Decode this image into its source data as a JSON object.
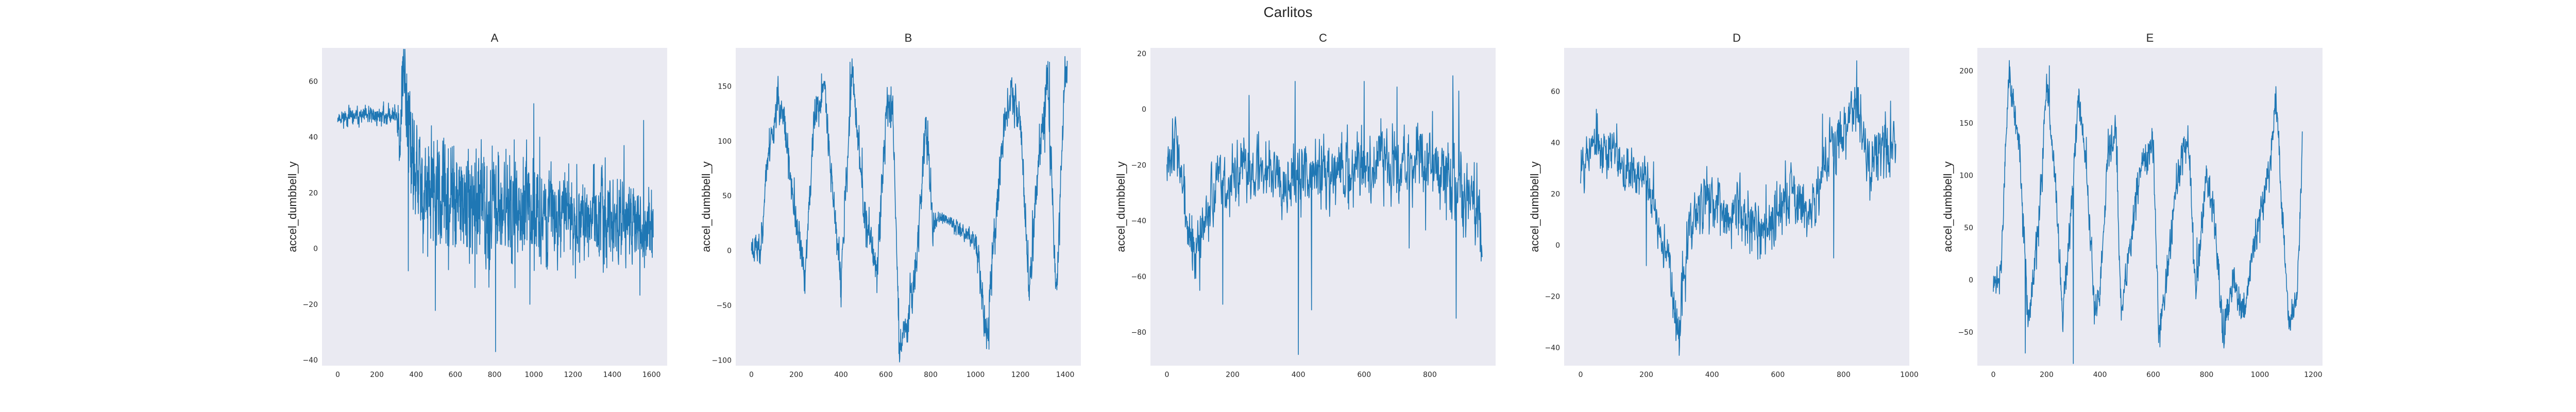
{
  "figure": {
    "title": "Carlitos",
    "background": "#ffffff",
    "axes_facecolor": "#eaeaf2",
    "line_color": "#1f77b4",
    "grid": false
  },
  "chart_data": [
    {
      "type": "line",
      "title": "A",
      "ylabel": "accel_dumbbell_y",
      "xlim": [
        -80,
        1680
      ],
      "ylim": [
        -42,
        72
      ],
      "xticks": [
        0,
        200,
        400,
        600,
        800,
        1000,
        1200,
        1400,
        1600
      ],
      "yticks": [
        -40,
        -20,
        0,
        20,
        40,
        60
      ],
      "n": 1610,
      "series": [
        {
          "anchors": [
            [
              0,
              47
            ],
            [
              300,
              48
            ],
            [
              310,
              48
            ],
            [
              320,
              30
            ],
            [
              330,
              60
            ],
            [
              340,
              66
            ],
            [
              350,
              57
            ],
            [
              380,
              28
            ],
            [
              430,
              22
            ],
            [
              500,
              18
            ],
            [
              600,
              16
            ],
            [
              700,
              14
            ],
            [
              800,
              15
            ],
            [
              900,
              14
            ],
            [
              1000,
              13
            ],
            [
              1100,
              12
            ],
            [
              1200,
              12
            ],
            [
              1300,
              11
            ],
            [
              1400,
              10
            ],
            [
              1500,
              8
            ],
            [
              1600,
              8
            ]
          ],
          "noise": [
            [
              0,
              2
            ],
            [
              300,
              2.5
            ],
            [
              320,
              12
            ],
            [
              400,
              14
            ],
            [
              1000,
              13
            ],
            [
              1500,
              9
            ],
            [
              1610,
              10
            ]
          ],
          "spikes": [
            [
              805,
              -37
            ],
            [
              1030,
              40
            ],
            [
              360,
              -8
            ],
            [
              980,
              -20
            ],
            [
              700,
              -14
            ],
            [
              1560,
              46
            ],
            [
              1000,
              52
            ],
            [
              1460,
              37
            ]
          ],
          "seed": 11
        }
      ]
    },
    {
      "type": "line",
      "title": "B",
      "ylabel": "accel_dumbbell_y",
      "xlim": [
        -70,
        1470
      ],
      "ylim": [
        -105,
        185
      ],
      "xticks": [
        0,
        200,
        400,
        600,
        800,
        1000,
        1200,
        1400
      ],
      "yticks": [
        -100,
        -50,
        0,
        50,
        100,
        150
      ],
      "n": 1410,
      "series": [
        {
          "anchors": [
            [
              0,
              5
            ],
            [
              40,
              0
            ],
            [
              70,
              80
            ],
            [
              120,
              140
            ],
            [
              150,
              110
            ],
            [
              200,
              20
            ],
            [
              240,
              -20
            ],
            [
              280,
              120
            ],
            [
              330,
              150
            ],
            [
              360,
              60
            ],
            [
              400,
              -30
            ],
            [
              450,
              165
            ],
            [
              500,
              40
            ],
            [
              560,
              -20
            ],
            [
              600,
              120
            ],
            [
              630,
              140
            ],
            [
              660,
              -90
            ],
            [
              700,
              -60
            ],
            [
              740,
              0
            ],
            [
              780,
              120
            ],
            [
              810,
              20
            ],
            [
              830,
              30
            ],
            [
              900,
              25
            ],
            [
              960,
              15
            ],
            [
              1000,
              10
            ],
            [
              1020,
              -20
            ],
            [
              1050,
              -80
            ],
            [
              1080,
              0
            ],
            [
              1120,
              100
            ],
            [
              1160,
              150
            ],
            [
              1200,
              120
            ],
            [
              1240,
              -40
            ],
            [
              1280,
              80
            ],
            [
              1320,
              160
            ],
            [
              1360,
              -40
            ],
            [
              1400,
              165
            ]
          ],
          "noise": [
            [
              0,
              12
            ],
            [
              800,
              14
            ],
            [
              830,
              4
            ],
            [
              990,
              6
            ],
            [
              1010,
              14
            ],
            [
              1410,
              14
            ]
          ],
          "spikes": [
            [
              1060,
              -90
            ],
            [
              440,
              172
            ],
            [
              1330,
              172
            ],
            [
              660,
              -95
            ]
          ],
          "seed": 23
        }
      ]
    },
    {
      "type": "line",
      "title": "C",
      "ylabel": "accel_dumbbell_y",
      "xlim": [
        -50,
        1000
      ],
      "ylim": [
        -92,
        22
      ],
      "xticks": [
        0,
        200,
        400,
        600,
        800
      ],
      "yticks": [
        -80,
        -60,
        -40,
        -20,
        0,
        20
      ],
      "n": 960,
      "series": [
        {
          "anchors": [
            [
              0,
              -15
            ],
            [
              30,
              -10
            ],
            [
              60,
              -40
            ],
            [
              90,
              -55
            ],
            [
              130,
              -30
            ],
            [
              200,
              -25
            ],
            [
              300,
              -20
            ],
            [
              400,
              -25
            ],
            [
              500,
              -22
            ],
            [
              600,
              -20
            ],
            [
              700,
              -18
            ],
            [
              800,
              -20
            ],
            [
              900,
              -30
            ],
            [
              960,
              -40
            ]
          ],
          "noise": [
            [
              0,
              8
            ],
            [
              960,
              10
            ]
          ],
          "spikes": [
            [
              400,
              -88
            ],
            [
              250,
              5
            ],
            [
              390,
              10
            ],
            [
              870,
              12
            ],
            [
              600,
              10
            ],
            [
              700,
              8
            ],
            [
              170,
              -70
            ],
            [
              440,
              -72
            ],
            [
              880,
              -75
            ],
            [
              100,
              -65
            ]
          ],
          "seed": 37
        }
      ]
    },
    {
      "type": "line",
      "title": "D",
      "ylabel": "accel_dumbbell_y",
      "xlim": [
        -50,
        1000
      ],
      "ylim": [
        -47,
        77
      ],
      "xticks": [
        0,
        200,
        400,
        600,
        800,
        1000
      ],
      "yticks": [
        -40,
        -20,
        0,
        20,
        40,
        60
      ],
      "n": 960,
      "series": [
        {
          "anchors": [
            [
              0,
              35
            ],
            [
              50,
              40
            ],
            [
              100,
              35
            ],
            [
              150,
              30
            ],
            [
              200,
              25
            ],
            [
              240,
              5
            ],
            [
              270,
              -5
            ],
            [
              290,
              -35
            ],
            [
              310,
              -20
            ],
            [
              330,
              5
            ],
            [
              380,
              20
            ],
            [
              450,
              10
            ],
            [
              500,
              15
            ],
            [
              550,
              5
            ],
            [
              600,
              15
            ],
            [
              650,
              20
            ],
            [
              700,
              15
            ],
            [
              750,
              35
            ],
            [
              800,
              45
            ],
            [
              840,
              55
            ],
            [
              880,
              30
            ],
            [
              920,
              35
            ],
            [
              950,
              40
            ]
          ],
          "noise": [
            [
              0,
              8
            ],
            [
              240,
              6
            ],
            [
              300,
              8
            ],
            [
              960,
              9
            ]
          ],
          "spikes": [
            [
              840,
              72
            ],
            [
              300,
              -43
            ],
            [
              200,
              -8
            ],
            [
              770,
              -5
            ]
          ],
          "seed": 53
        }
      ]
    },
    {
      "type": "line",
      "title": "E",
      "ylabel": "accel_dumbbell_y",
      "xlim": [
        -60,
        1235
      ],
      "ylim": [
        -82,
        222
      ],
      "xticks": [
        0,
        200,
        400,
        600,
        800,
        1000,
        1200
      ],
      "yticks": [
        -50,
        0,
        50,
        100,
        150,
        200
      ],
      "n": 1160,
      "series": [
        {
          "anchors": [
            [
              0,
              -10
            ],
            [
              30,
              10
            ],
            [
              50,
              150
            ],
            [
              60,
              200
            ],
            [
              100,
              120
            ],
            [
              130,
              -40
            ],
            [
              170,
              50
            ],
            [
              200,
              190
            ],
            [
              230,
              100
            ],
            [
              260,
              -40
            ],
            [
              290,
              60
            ],
            [
              320,
              180
            ],
            [
              350,
              110
            ],
            [
              380,
              -30
            ],
            [
              400,
              -20
            ],
            [
              430,
              120
            ],
            [
              460,
              140
            ],
            [
              480,
              -40
            ],
            [
              520,
              50
            ],
            [
              560,
              110
            ],
            [
              600,
              130
            ],
            [
              620,
              -50
            ],
            [
              650,
              0
            ],
            [
              690,
              100
            ],
            [
              730,
              140
            ],
            [
              760,
              -10
            ],
            [
              800,
              100
            ],
            [
              830,
              60
            ],
            [
              860,
              -50
            ],
            [
              900,
              0
            ],
            [
              940,
              -30
            ],
            [
              980,
              40
            ],
            [
              1000,
              60
            ],
            [
              1040,
              110
            ],
            [
              1060,
              180
            ],
            [
              1080,
              80
            ],
            [
              1110,
              -40
            ],
            [
              1140,
              -20
            ],
            [
              1160,
              130
            ]
          ],
          "noise": [
            [
              0,
              12
            ],
            [
              1160,
              12
            ]
          ],
          "spikes": [
            [
              60,
              210
            ],
            [
              210,
              205
            ],
            [
              120,
              -70
            ],
            [
              300,
              -80
            ],
            [
              620,
              -60
            ],
            [
              1060,
              185
            ],
            [
              860,
              -60
            ]
          ],
          "seed": 71
        }
      ]
    }
  ]
}
